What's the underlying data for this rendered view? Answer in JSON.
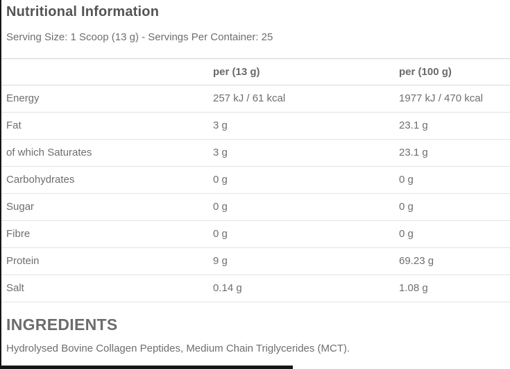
{
  "header": {
    "title": "Nutritional Information",
    "serving_info": "Serving Size: 1 Scoop (13 g) - Servings Per Container: 25"
  },
  "table": {
    "columns": {
      "label": "",
      "per_serving": "per (13 g)",
      "per_100g": "per (100 g)"
    },
    "rows": [
      {
        "label": "Energy",
        "per_serving": "257 kJ / 61 kcal",
        "per_100g": "1977 kJ / 470 kcal"
      },
      {
        "label": "Fat",
        "per_serving": "3 g",
        "per_100g": "23.1 g"
      },
      {
        "label": "of which Saturates",
        "per_serving": "3 g",
        "per_100g": "23.1 g"
      },
      {
        "label": "Carbohydrates",
        "per_serving": "0 g",
        "per_100g": "0 g"
      },
      {
        "label": "Sugar",
        "per_serving": "0 g",
        "per_100g": "0 g"
      },
      {
        "label": "Fibre",
        "per_serving": "0 g",
        "per_100g": "0 g"
      },
      {
        "label": "Protein",
        "per_serving": "9 g",
        "per_100g": "69.23 g"
      },
      {
        "label": "Salt",
        "per_serving": "0.14 g",
        "per_100g": "1.08 g"
      }
    ]
  },
  "ingredients": {
    "heading": "INGREDIENTS",
    "text": "Hydrolysed Bovine Collagen Peptides, Medium Chain Triglycerides (MCT)."
  },
  "colors": {
    "title_text": "#545457",
    "body_text": "#6d6e70",
    "row_divider": "#e3e3e3",
    "header_divider": "#d4d4d4",
    "edge_border": "#161616",
    "background": "#ffffff"
  }
}
